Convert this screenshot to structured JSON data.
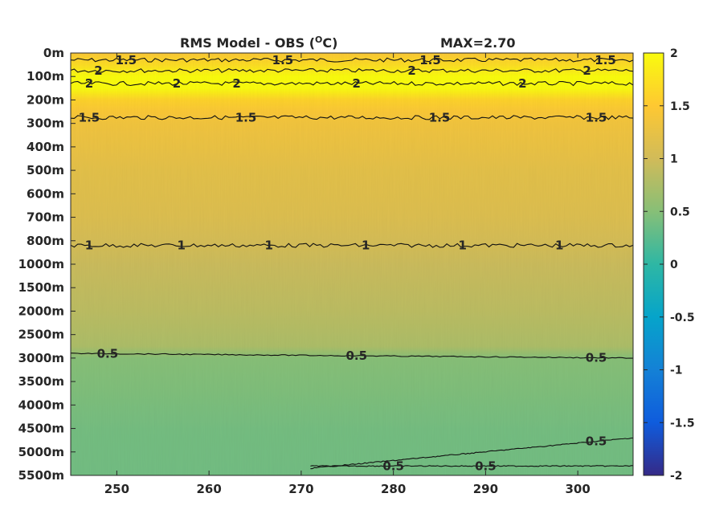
{
  "chart_data": {
    "type": "heatmap",
    "title": "RMS Model - OBS (",
    "title_unit_sup": "O",
    "title_unit_end": "C)",
    "max_label": "MAX=2.70",
    "x_ticks": [
      250,
      260,
      270,
      280,
      290,
      300
    ],
    "xlim": [
      245,
      306
    ],
    "y_tick_labels": [
      "0m",
      "100m",
      "200m",
      "300m",
      "400m",
      "500m",
      "600m",
      "700m",
      "800m",
      "1000m",
      "1500m",
      "2000m",
      "2500m",
      "3000m",
      "3500m",
      "4000m",
      "4500m",
      "5000m",
      "5500m"
    ],
    "colorbar": {
      "range": [
        -2,
        2
      ],
      "ticks": [
        2,
        1.5,
        1,
        0.5,
        0,
        -0.5,
        -1,
        -1.5,
        -2
      ],
      "tick_labels": [
        "2",
        "1.5",
        "1",
        "0.5",
        "0",
        "-0.5",
        "-1",
        "-1.5",
        "-2"
      ],
      "colormap": "parula",
      "stops": [
        "#352a87",
        "#0f5cdd",
        "#1481d6",
        "#06a4ca",
        "#2eb7a4",
        "#87bf77",
        "#d1bb59",
        "#fec832",
        "#f9fb0e"
      ]
    },
    "depth_profile": [
      {
        "level": 0,
        "value": 1.45
      },
      {
        "level": 0.5,
        "value": 1.7
      },
      {
        "level": 1,
        "value": 2.05
      },
      {
        "level": 1.5,
        "value": 2.0
      },
      {
        "level": 2,
        "value": 1.6
      },
      {
        "level": 2.5,
        "value": 1.45
      },
      {
        "level": 3,
        "value": 1.35
      },
      {
        "level": 5,
        "value": 1.2
      },
      {
        "level": 7,
        "value": 1.12
      },
      {
        "level": 8.2,
        "value": 1.02
      },
      {
        "level": 9,
        "value": 0.95
      },
      {
        "level": 11,
        "value": 0.85
      },
      {
        "level": 12.5,
        "value": 0.75
      },
      {
        "level": 13,
        "value": 0.5
      },
      {
        "level": 14.5,
        "value": 0.45
      },
      {
        "level": 16,
        "value": 0.4
      },
      {
        "level": 18,
        "value": 0.38
      }
    ],
    "contours": [
      {
        "label": "1.5",
        "level": 0.3,
        "label_x": [
          251,
          268,
          284,
          303
        ]
      },
      {
        "label": "2",
        "level": 0.75,
        "label_x": [
          248,
          282,
          301
        ]
      },
      {
        "label": "2",
        "level": 1.3,
        "label_x": [
          247,
          256.5,
          263,
          276,
          294
        ]
      },
      {
        "label": "1.5",
        "level": 2.75,
        "label_x": [
          247,
          264,
          285,
          302
        ]
      },
      {
        "label": "1",
        "level": 8.2,
        "label_x": [
          247,
          257,
          266.5,
          277,
          287.5,
          298
        ]
      },
      {
        "label": "0.5",
        "level_start": 12.8,
        "level_end": 13.0,
        "label_x": [
          249,
          276,
          302
        ]
      },
      {
        "label": "0.5",
        "level": 17.6,
        "label_x": [
          280,
          290
        ]
      },
      {
        "label": "0.5",
        "level": 16.6,
        "label_x": [
          302
        ]
      }
    ]
  }
}
